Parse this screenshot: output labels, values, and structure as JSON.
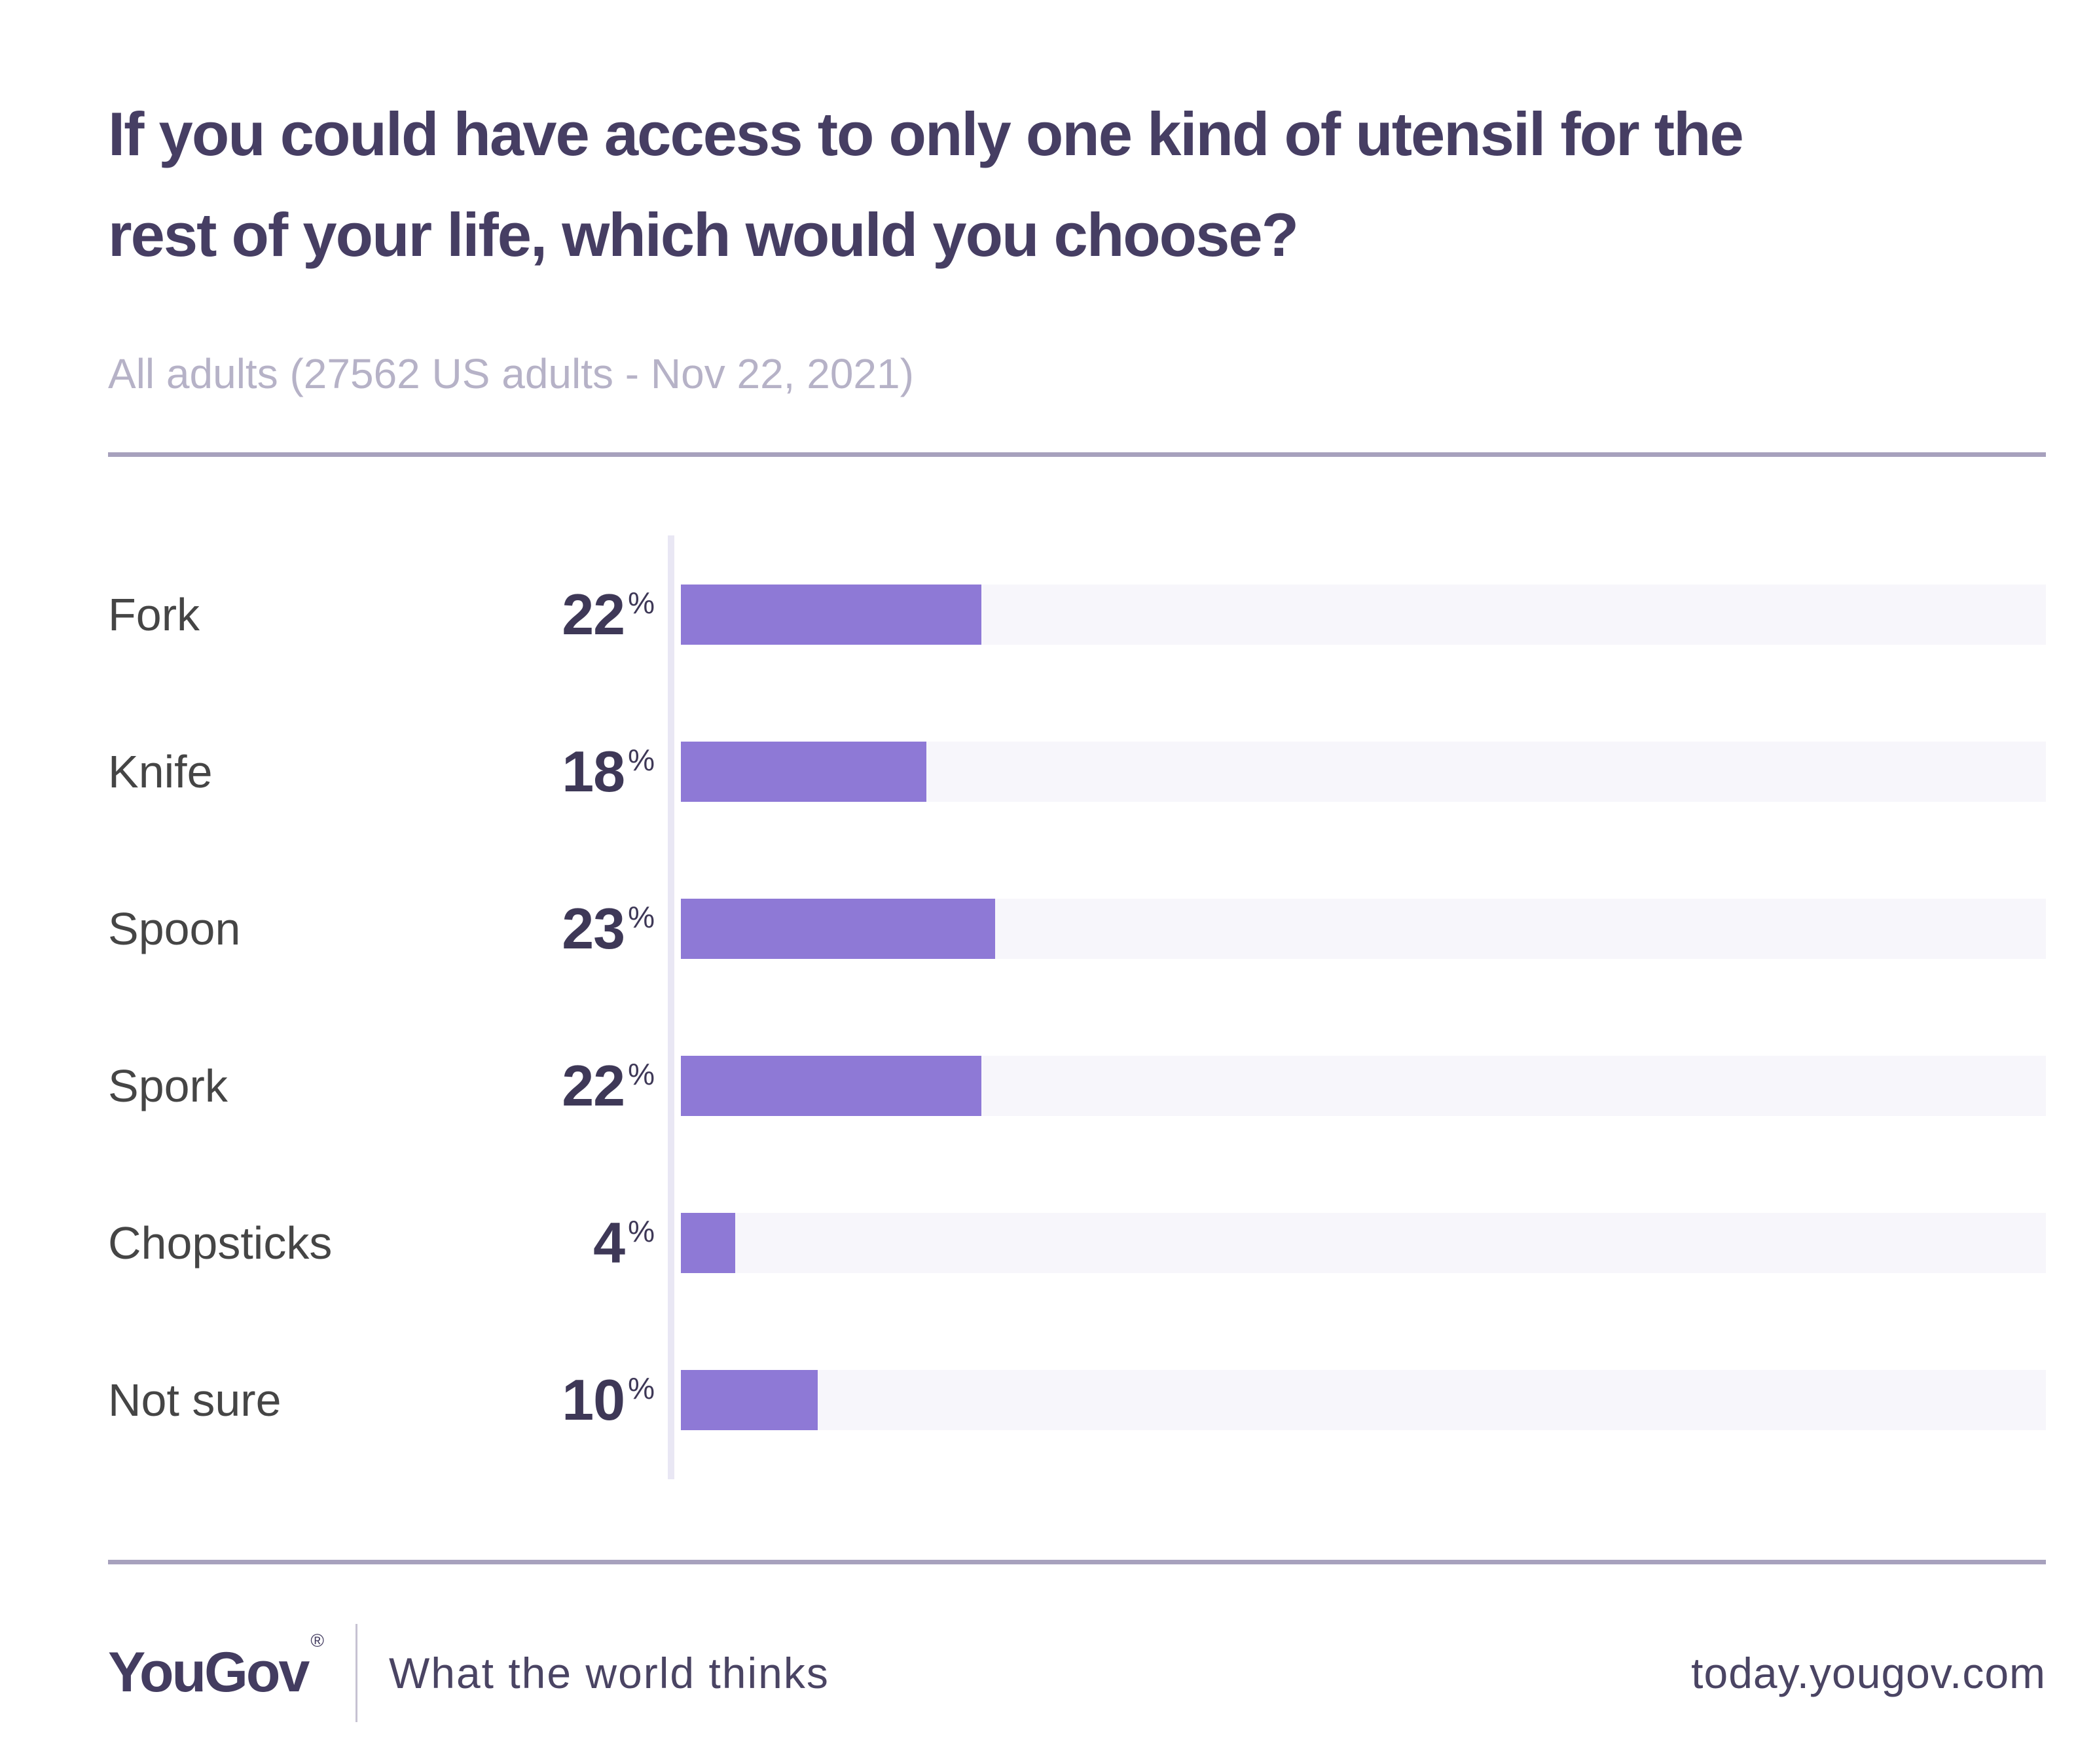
{
  "header": {
    "title": "If you could have access to only one kind of utensil for the rest of your life, which would you choose?",
    "title_lines": [
      "If you could have access to only one kind of utensil for the",
      "rest of your life, which would you choose?"
    ],
    "subtitle": "All adults (27562 US adults - Nov 22, 2021)"
  },
  "chart_data": {
    "type": "bar",
    "orientation": "horizontal",
    "title": "If you could have access to only one kind of utensil for the rest of your life, which would you choose?",
    "subtitle": "All adults (27562 US adults - Nov 22, 2021)",
    "categories": [
      "Fork",
      "Knife",
      "Spoon",
      "Spork",
      "Chopsticks",
      "Not sure"
    ],
    "values": [
      22,
      18,
      23,
      22,
      4,
      10
    ],
    "unit": "%",
    "xlim": [
      0,
      100
    ],
    "grid": false,
    "legend": false,
    "value_label_position": "left-of-bar",
    "bar_color": "#8e79d6",
    "track_color": "#f7f6fb",
    "axis_line_color": "#e9e7f4"
  },
  "footer": {
    "logo": "YouGov",
    "registered_mark": "®",
    "tagline": "What the world thinks",
    "url": "today.yougov.com"
  },
  "colors": {
    "accent_purple": "#8e79d6",
    "title_text": "#463e63",
    "subtitle_text": "#b6b2c7",
    "label_text": "#454545",
    "value_text": "#3e3857",
    "divider": "#a7a1bd",
    "background": "#ffffff"
  }
}
